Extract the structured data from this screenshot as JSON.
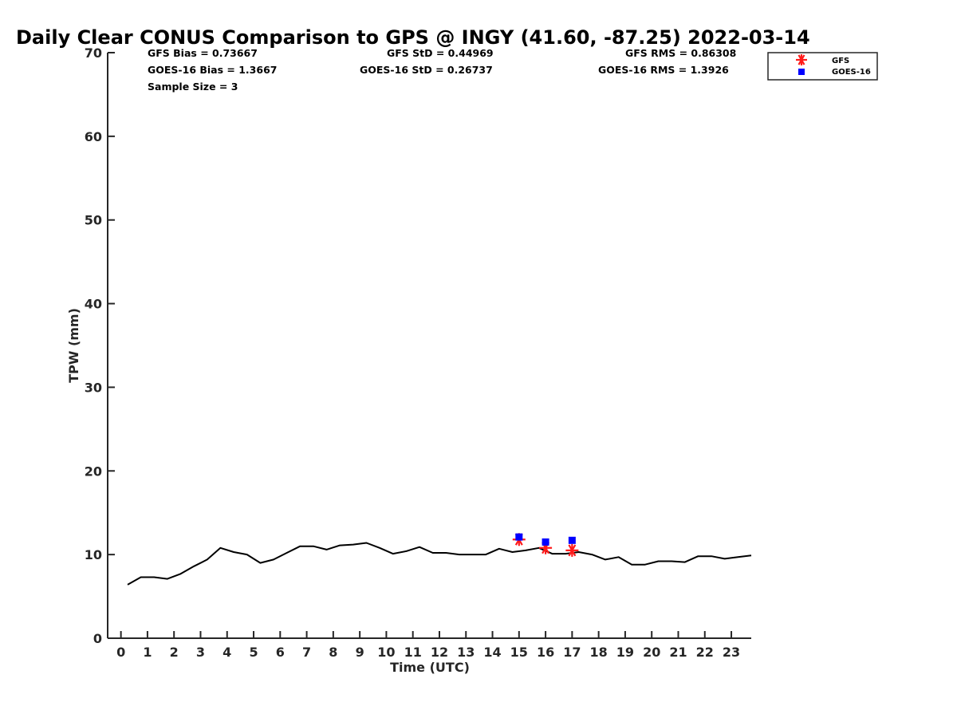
{
  "chart_data": {
    "type": "line",
    "title": "Daily Clear CONUS Comparison to GPS @ INGY (41.60, -87.25) 2022-03-14",
    "xlabel": "Time (UTC)",
    "ylabel": "TPW (mm)",
    "xlim": [
      -0.5,
      23.75
    ],
    "ylim": [
      0,
      70
    ],
    "x_ticks": [
      0,
      1,
      2,
      3,
      4,
      5,
      6,
      7,
      8,
      9,
      10,
      11,
      12,
      13,
      14,
      15,
      16,
      17,
      18,
      19,
      20,
      21,
      22,
      23
    ],
    "x_tick_labels": [
      "0",
      "1",
      "2",
      "3",
      "4",
      "5",
      "6",
      "7",
      "8",
      "9",
      "10",
      "11",
      "12",
      "13",
      "14",
      "15",
      "16",
      "17",
      "18",
      "19",
      "20",
      "21",
      "22",
      "23"
    ],
    "y_ticks": [
      0,
      10,
      20,
      30,
      40,
      50,
      60,
      70
    ],
    "y_tick_labels": [
      "0",
      "10",
      "20",
      "30",
      "40",
      "50",
      "60",
      "70"
    ],
    "grid": false,
    "legend_position": "top-right",
    "stats": {
      "gfs_bias": "GFS Bias = 0.73667",
      "gfs_std": "GFS StD = 0.44969",
      "gfs_rms": "GFS RMS = 0.86308",
      "goes_bias": "GOES-16 Bias = 1.3667",
      "goes_std": "GOES-16 StD = 0.26737",
      "goes_rms": "GOES-16 RMS = 1.3926",
      "sample_size": "Sample Size = 3"
    },
    "series": [
      {
        "name": "",
        "kind": "line",
        "color": "#000000",
        "x": [
          0.25,
          0.75,
          1.25,
          1.75,
          2.25,
          2.75,
          3.25,
          3.75,
          4.25,
          4.75,
          5.25,
          5.75,
          6.25,
          6.75,
          7.25,
          7.75,
          8.25,
          8.75,
          9.25,
          9.75,
          10.25,
          10.75,
          11.25,
          11.75,
          12.25,
          12.75,
          13.25,
          13.75,
          14.25,
          14.75,
          15.25,
          15.75,
          16.25,
          16.75,
          17.25,
          17.75,
          18.25,
          18.75,
          19.25,
          19.75,
          20.25,
          20.75,
          21.25,
          21.75,
          22.25,
          22.75,
          23.25,
          23.75
        ],
        "y": [
          6.4,
          7.3,
          7.3,
          7.1,
          7.7,
          8.6,
          9.4,
          10.8,
          10.3,
          10.0,
          9.0,
          9.4,
          10.2,
          11.0,
          11.0,
          10.6,
          11.1,
          11.2,
          11.4,
          10.8,
          10.1,
          10.4,
          10.9,
          10.2,
          10.2,
          10.0,
          10.0,
          10.0,
          10.7,
          10.3,
          10.5,
          10.8,
          10.1,
          10.1,
          10.3,
          10.0,
          9.4,
          9.7,
          8.8,
          8.8,
          9.2,
          9.2,
          9.1,
          9.8,
          9.8,
          9.5,
          9.7,
          9.9
        ]
      },
      {
        "name": "GFS",
        "kind": "scatter",
        "marker": "asterisk",
        "color": "#ff1a1a",
        "x": [
          15,
          16,
          17
        ],
        "y": [
          11.8,
          10.8,
          10.5
        ]
      },
      {
        "name": "GOES-16",
        "kind": "scatter",
        "marker": "square",
        "color": "#0000ff",
        "x": [
          15,
          16,
          17
        ],
        "y": [
          12.1,
          11.5,
          11.7
        ]
      }
    ]
  }
}
